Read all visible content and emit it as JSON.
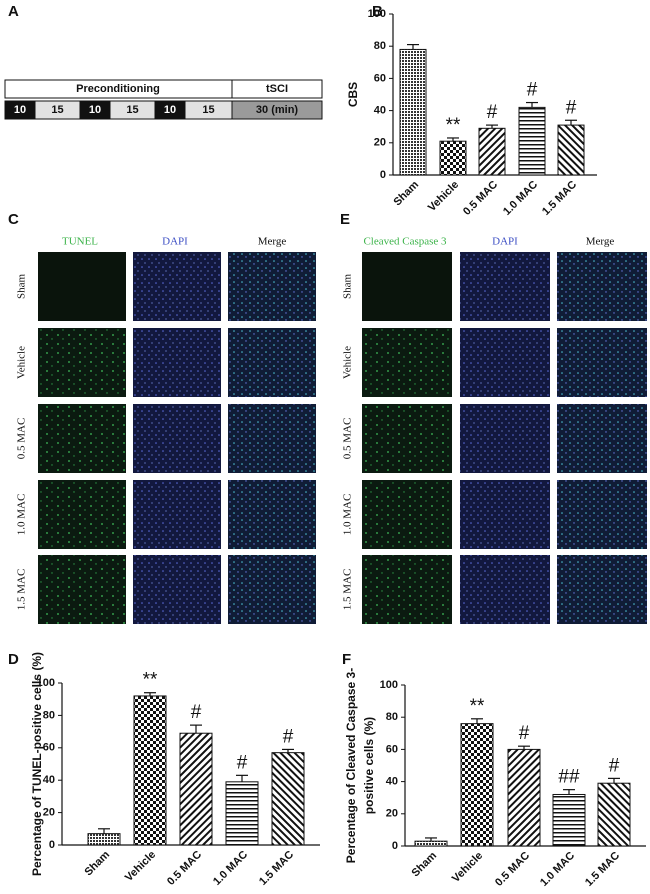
{
  "chart_data": [
    {
      "type": "bar",
      "panel": "B",
      "ylabel": "CBS",
      "categories": [
        "Sham",
        "Vehicle",
        "0.5 MAC",
        "1.0 MAC",
        "1.5 MAC"
      ],
      "values": [
        78,
        21,
        29,
        42,
        31
      ],
      "errors": [
        3,
        2,
        2,
        3,
        3
      ],
      "annotations": [
        null,
        "**",
        "#",
        "#",
        "#"
      ],
      "ylim": [
        0,
        100
      ],
      "yticks": [
        0,
        20,
        40,
        60,
        80,
        100
      ]
    },
    {
      "type": "bar",
      "panel": "D",
      "ylabel": "Percentage of TUNEL-positive cells (%)",
      "categories": [
        "Sham",
        "Vehicle",
        "0.5 MAC",
        "1.0 MAC",
        "1.5 MAC"
      ],
      "values": [
        7,
        92,
        69,
        39,
        57
      ],
      "errors": [
        3,
        2,
        5,
        4,
        2
      ],
      "annotations": [
        null,
        "**",
        "#",
        "#",
        "#"
      ],
      "ylim": [
        0,
        100
      ],
      "yticks": [
        0,
        20,
        40,
        60,
        80,
        100
      ]
    },
    {
      "type": "bar",
      "panel": "F",
      "ylabel": [
        "Percentage of Cleaved Caspase 3-",
        "positive cells (%)"
      ],
      "categories": [
        "Sham",
        "Vehicle",
        "0.5 MAC",
        "1.0 MAC",
        "1.5 MAC"
      ],
      "values": [
        3,
        76,
        60,
        32,
        39
      ],
      "errors": [
        2,
        3,
        2,
        3,
        3
      ],
      "annotations": [
        null,
        "**",
        "#",
        "##",
        "#"
      ],
      "ylim": [
        0,
        100
      ],
      "yticks": [
        0,
        20,
        40,
        60,
        80,
        100
      ]
    }
  ],
  "timeline": {
    "panel": "A",
    "phases": [
      "Preconditioning",
      "tSCI"
    ],
    "segments": [
      "10",
      "15",
      "10",
      "15",
      "10",
      "15",
      "30 (min)"
    ]
  },
  "micrographs": [
    {
      "panel": "C",
      "columns": [
        "TUNEL",
        "DAPI",
        "Merge"
      ],
      "rows": [
        "Sham",
        "Vehicle",
        "0.5 MAC",
        "1.0 MAC",
        "1.5 MAC"
      ]
    },
    {
      "panel": "E",
      "columns": [
        "Cleaved Caspase 3",
        "DAPI",
        "Merge"
      ],
      "rows": [
        "Sham",
        "Vehicle",
        "0.5 MAC",
        "1.0 MAC",
        "1.5 MAC"
      ]
    }
  ]
}
